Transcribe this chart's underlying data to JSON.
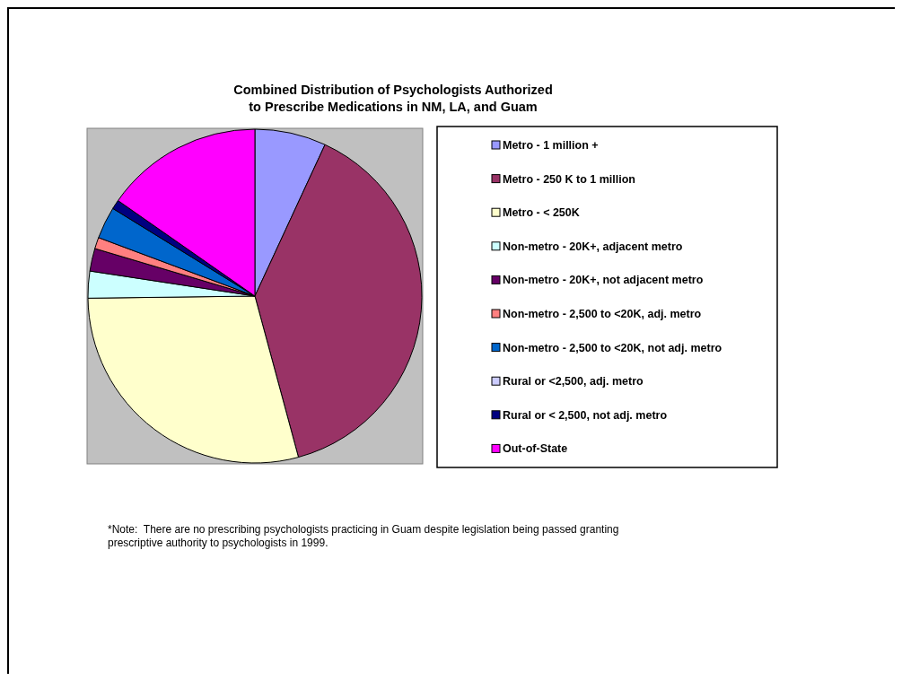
{
  "chart_data": {
    "type": "pie",
    "title": "Combined Distribution of Psychologists Authorized\nto Prescribe Medications in NM, LA, and Guam",
    "categories": [
      "Metro - 1 million +",
      "Metro - 250 K to 1 million",
      "Metro - < 250K",
      "Non-metro - 20K+, adjacent metro",
      "Non-metro - 20K+, not adjacent metro",
      "Non-metro - 2,500 to <20K, adj. metro",
      "Non-metro - 2,500 to <20K, not adj. metro",
      "Rural or <2,500, adj. metro",
      "Rural or < 2,500, not adj. metro",
      "Out-of-State"
    ],
    "values": [
      6.9,
      38.9,
      29.0,
      2.6,
      2.2,
      1.1,
      3.1,
      null,
      0.9,
      15.3
    ],
    "colors": [
      "#9999ff",
      "#993366",
      "#ffffcc",
      "#ccffff",
      "#660066",
      "#ff8080",
      "#0066cc",
      "#ccccff",
      "#000080",
      "#ff00ff"
    ],
    "legend": "right",
    "annotations": [
      "*Note:  There are no prescribing psychologists practicing in Guam despite legislation being passed granting prescriptive authority to psychologists in 1999."
    ]
  }
}
